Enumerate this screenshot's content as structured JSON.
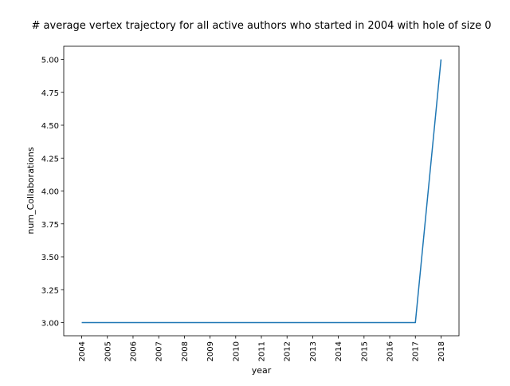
{
  "chart_data": {
    "type": "line",
    "title": "# average vertex trajectory for all active authors who started in 2004 with hole of size 0",
    "xlabel": "year",
    "ylabel": "num_Collaborations",
    "x": [
      "2004",
      "2005",
      "2006",
      "2007",
      "2008",
      "2009",
      "2010",
      "2011",
      "2012",
      "2013",
      "2014",
      "2015",
      "2016",
      "2017",
      "2018"
    ],
    "series": [
      {
        "values": [
          3.0,
          3.0,
          3.0,
          3.0,
          3.0,
          3.0,
          3.0,
          3.0,
          3.0,
          3.0,
          3.0,
          3.0,
          3.0,
          3.0,
          5.0
        ],
        "color": "#1f77b4"
      }
    ],
    "ylim": [
      2.9,
      5.1
    ],
    "yticks": [
      3.0,
      3.25,
      3.5,
      3.75,
      4.0,
      4.25,
      4.5,
      4.75,
      5.0
    ],
    "ytick_labels": [
      "3.00",
      "3.25",
      "3.50",
      "3.75",
      "4.00",
      "4.25",
      "4.50",
      "4.75",
      "5.00"
    ],
    "grid": false,
    "legend": false
  }
}
